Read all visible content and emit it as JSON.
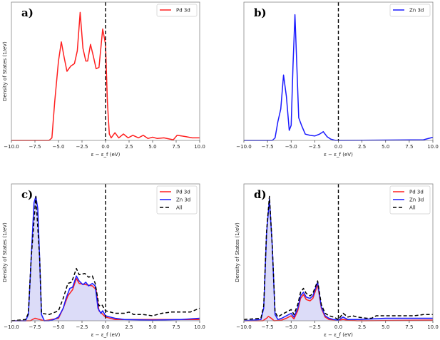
{
  "chart_data": [
    {
      "type": "line",
      "panel_label": "a)",
      "xlabel": "ε − ε_f (eV)",
      "ylabel": "Density of States (1/eV)",
      "xlim": [
        -10,
        10
      ],
      "ylim": [
        0,
        1.08
      ],
      "xticks": [
        -10.0,
        -7.5,
        -5.0,
        -2.5,
        0.0,
        2.5,
        5.0,
        7.5,
        10.0
      ],
      "xtick_labels": [
        "−10.0",
        "−7.5",
        "−5.0",
        "−2.5",
        "0.0",
        "2.5",
        "5.0",
        "7.5",
        "10.0"
      ],
      "fermi_level": 0,
      "legend_position": "top-right",
      "fill_series": null,
      "series": [
        {
          "name": "Pd 3d",
          "color": "#ff2020",
          "dashed": false,
          "x": [
            -10,
            -6,
            -5.7,
            -5.4,
            -5.0,
            -4.7,
            -4.4,
            -4.1,
            -3.7,
            -3.3,
            -3.0,
            -2.7,
            -2.4,
            -2.1,
            -1.9,
            -1.6,
            -1.3,
            -1.0,
            -0.7,
            -0.3,
            0,
            0.2,
            0.4,
            0.6,
            1.0,
            1.4,
            1.9,
            2.4,
            2.9,
            3.5,
            4.0,
            4.5,
            5.0,
            5.5,
            6.2,
            7.2,
            7.6,
            8.5,
            9.2,
            10
          ],
          "y": [
            0,
            0,
            0.02,
            0.3,
            0.62,
            0.77,
            0.65,
            0.54,
            0.58,
            0.6,
            0.7,
            1.0,
            0.72,
            0.62,
            0.62,
            0.75,
            0.66,
            0.56,
            0.57,
            0.87,
            0.75,
            0.3,
            0.05,
            0.02,
            0.06,
            0.02,
            0.05,
            0.02,
            0.04,
            0.02,
            0.04,
            0.015,
            0.025,
            0.015,
            0.02,
            0.005,
            0.04,
            0.03,
            0.02,
            0.02
          ]
        }
      ]
    },
    {
      "type": "line",
      "panel_label": "b)",
      "xlabel": "ε − ε_f (eV)",
      "ylabel": "",
      "xlim": [
        -10,
        10
      ],
      "ylim": [
        0,
        1.1
      ],
      "xticks": [
        -10.0,
        -7.5,
        -5.0,
        -2.5,
        0.0,
        2.5,
        5.0,
        7.5,
        10.0
      ],
      "xtick_labels": [
        "−10.0",
        "−7.5",
        "−5.0",
        "−2.5",
        "0.0",
        "2.5",
        "5.0",
        "7.5",
        "10.0"
      ],
      "fermi_level": 0,
      "legend_position": "top-right",
      "fill_series": null,
      "series": [
        {
          "name": "Zn 3d",
          "color": "#1a1aff",
          "dashed": false,
          "x": [
            -10,
            -7,
            -6.7,
            -6.4,
            -6.1,
            -5.8,
            -5.5,
            -5.2,
            -5.0,
            -4.8,
            -4.6,
            -4.4,
            -4.2,
            -3.9,
            -3.5,
            -3.0,
            -2.5,
            -2.0,
            -1.6,
            -1.2,
            -0.8,
            -0.3,
            9,
            10
          ],
          "y": [
            0,
            0,
            0.02,
            0.15,
            0.25,
            0.52,
            0.35,
            0.08,
            0.12,
            0.6,
            1.0,
            0.6,
            0.18,
            0.12,
            0.05,
            0.04,
            0.035,
            0.05,
            0.07,
            0.03,
            0.01,
            0,
            0.005,
            0.025
          ]
        }
      ]
    },
    {
      "type": "line",
      "panel_label": "c)",
      "xlabel": "ε − ε_f (eV)",
      "ylabel": "Density of States (1/eV)",
      "xlim": [
        -10,
        10
      ],
      "ylim": [
        0,
        1.1
      ],
      "xticks": [
        -10.0,
        -7.5,
        -5.0,
        -2.5,
        0.0,
        2.5,
        5.0,
        7.5,
        10.0
      ],
      "xtick_labels": [
        "−10.0",
        "−7.5",
        "−5.0",
        "−2.5",
        "0.0",
        "2.5",
        "5.0",
        "7.5",
        "10.0"
      ],
      "fermi_level": 0,
      "legend_position": "top-right",
      "fill_series": "Zn 3d",
      "fill_color": "#dcdcf8",
      "series": [
        {
          "name": "Pd 3d",
          "color": "#ff2020",
          "dashed": false,
          "x": [
            -10,
            -8,
            -7.5,
            -7,
            -6.5,
            -5,
            -4.5,
            -4,
            -3.5,
            -3.1,
            -2.8,
            -2.1,
            -1.4,
            -1,
            -0.7,
            0,
            1,
            10
          ],
          "y": [
            0,
            0,
            0.02,
            0.01,
            0,
            0.02,
            0.1,
            0.2,
            0.25,
            0.34,
            0.3,
            0.29,
            0.28,
            0.25,
            0.08,
            0.03,
            0.01,
            0.01
          ]
        },
        {
          "name": "Zn 3d",
          "color": "#1a1aff",
          "dashed": false,
          "x": [
            -10,
            -8.5,
            -8.2,
            -7.9,
            -7.6,
            -7.4,
            -7.2,
            -7.0,
            -6.8,
            -6.5,
            -6,
            -5.5,
            -5,
            -4.5,
            -4.2,
            -3.8,
            -3.5,
            -3.1,
            -2.8,
            -2.4,
            -2.1,
            -1.8,
            -1.4,
            -1.1,
            -0.8,
            -0.5,
            -0.3,
            0,
            0.5,
            1,
            2,
            5,
            8,
            10
          ],
          "y": [
            0,
            0,
            0.05,
            0.5,
            0.95,
            1.0,
            0.9,
            0.5,
            0.05,
            0,
            0,
            0.01,
            0.03,
            0.1,
            0.18,
            0.26,
            0.27,
            0.36,
            0.32,
            0.29,
            0.31,
            0.28,
            0.3,
            0.28,
            0.1,
            0.06,
            0.08,
            0.04,
            0.03,
            0.02,
            0.01,
            0.005,
            0.01,
            0.02
          ]
        },
        {
          "name": "All",
          "color": "#000000",
          "dashed": true,
          "x": [
            -10,
            -8.5,
            -8.2,
            -7.9,
            -7.4,
            -7,
            -6.8,
            -6,
            -5,
            -4.5,
            -4,
            -3.6,
            -3.1,
            -2.8,
            -2.2,
            -1.8,
            -1.4,
            -1.1,
            -0.7,
            -0.4,
            0,
            1,
            2,
            2.5,
            3,
            4,
            5,
            6,
            7,
            8,
            9,
            10
          ],
          "y": [
            0,
            0.01,
            0.06,
            0.5,
            1.0,
            0.5,
            0.06,
            0.05,
            0.08,
            0.18,
            0.3,
            0.31,
            0.42,
            0.37,
            0.38,
            0.35,
            0.36,
            0.3,
            0.12,
            0.13,
            0.08,
            0.06,
            0.06,
            0.07,
            0.05,
            0.05,
            0.04,
            0.06,
            0.07,
            0.07,
            0.07,
            0.1
          ]
        }
      ]
    },
    {
      "type": "line",
      "panel_label": "d)",
      "xlabel": "ε − ε_f (eV)",
      "ylabel": "Density of States (1/eV)",
      "xlim": [
        -10,
        10
      ],
      "ylim": [
        0,
        1.1
      ],
      "xticks": [
        -10.0,
        -7.5,
        -5.0,
        -2.5,
        0.0,
        2.5,
        5.0,
        7.5,
        10.0
      ],
      "xtick_labels": [
        "−10.0",
        "−7.5",
        "−5.0",
        "−2.5",
        "0.0",
        "2.5",
        "5.0",
        "7.5",
        "10.0"
      ],
      "fermi_level": 0,
      "legend_position": "top-right",
      "fill_series": "Zn 3d",
      "fill_color": "#dcdcf8",
      "series": [
        {
          "name": "Pd 3d",
          "color": "#ff2020",
          "dashed": false,
          "x": [
            -10,
            -8,
            -7.6,
            -7.4,
            -7.1,
            -6.8,
            -6,
            -5.5,
            -5.0,
            -4.7,
            -4.3,
            -4.0,
            -3.7,
            -3.4,
            -3.0,
            -2.7,
            -2.2,
            -1.8,
            -1.4,
            -1,
            0,
            0.5,
            1,
            2,
            10
          ],
          "y": [
            0,
            0,
            0.02,
            0.035,
            0.02,
            0,
            0.005,
            0.02,
            0.04,
            0.015,
            0.08,
            0.18,
            0.21,
            0.17,
            0.16,
            0.18,
            0.29,
            0.1,
            0.03,
            0.01,
            0.005,
            0.01,
            0.005,
            0,
            0.005
          ]
        },
        {
          "name": "Zn 3d",
          "color": "#1a1aff",
          "dashed": false,
          "x": [
            -10,
            -8.2,
            -7.9,
            -7.6,
            -7.3,
            -7.0,
            -6.7,
            -6.4,
            -6,
            -5.5,
            -5.0,
            -4.7,
            -4.3,
            -4.0,
            -3.7,
            -3.4,
            -3.0,
            -2.7,
            -2.2,
            -1.8,
            -1.4,
            -1,
            -0.5,
            0,
            0.5,
            1,
            2,
            5,
            8,
            10
          ],
          "y": [
            0,
            0.01,
            0.1,
            0.7,
            0.98,
            0.6,
            0.05,
            0.01,
            0.02,
            0.04,
            0.06,
            0.03,
            0.1,
            0.2,
            0.23,
            0.19,
            0.18,
            0.2,
            0.31,
            0.11,
            0.04,
            0.02,
            0.01,
            0.005,
            0.03,
            0.01,
            0.01,
            0.02,
            0.02,
            0.02
          ]
        },
        {
          "name": "All",
          "color": "#000000",
          "dashed": true,
          "x": [
            -10,
            -8.2,
            -7.9,
            -7.6,
            -7.3,
            -7.0,
            -6.7,
            -6.4,
            -6,
            -5.5,
            -5.0,
            -4.7,
            -4.3,
            -4.0,
            -3.7,
            -3.4,
            -3.0,
            -2.7,
            -2.2,
            -1.8,
            -1.4,
            -1,
            -0.5,
            0,
            0.5,
            1,
            1.5,
            2,
            3,
            3.5,
            4,
            5,
            6,
            7,
            8,
            9,
            10
          ],
          "y": [
            0.01,
            0.02,
            0.12,
            0.72,
            1.0,
            0.6,
            0.07,
            0.03,
            0.05,
            0.07,
            0.09,
            0.05,
            0.13,
            0.23,
            0.26,
            0.22,
            0.2,
            0.22,
            0.32,
            0.13,
            0.06,
            0.04,
            0.03,
            0.01,
            0.06,
            0.03,
            0.04,
            0.03,
            0.02,
            0.02,
            0.04,
            0.04,
            0.04,
            0.04,
            0.04,
            0.05,
            0.05
          ]
        }
      ]
    }
  ]
}
